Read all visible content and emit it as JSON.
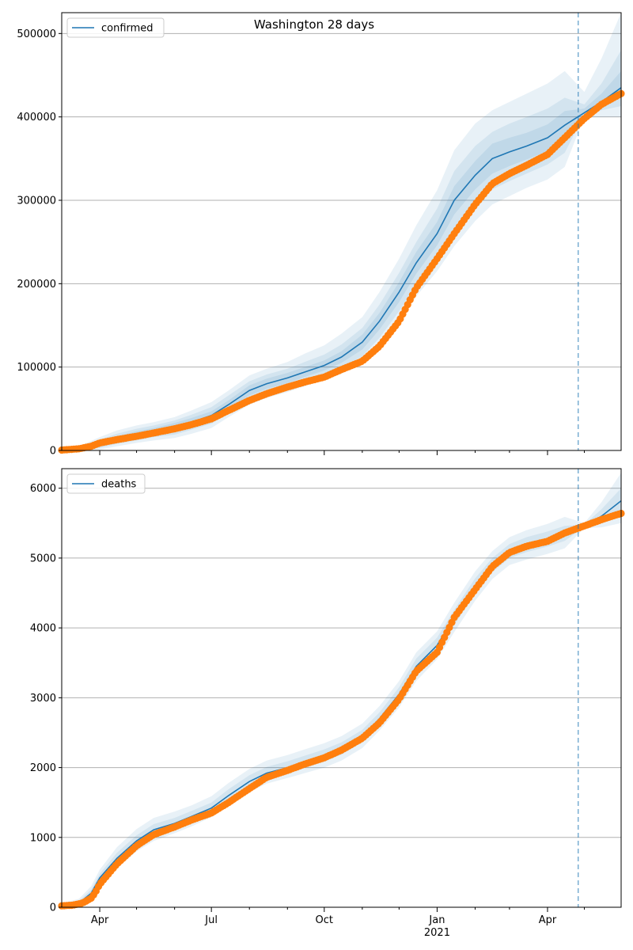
{
  "figure": {
    "title": "Washington 28 days",
    "colors": {
      "model_line": "#1f77b4",
      "band": "#1f77b4",
      "observed": "#ff7f0e",
      "cutoff_line": "#1f77b4",
      "grid": "#b0b0b0"
    }
  },
  "chart_data": [
    {
      "type": "line",
      "legend": "confirmed",
      "legend_position": "top-left",
      "grid": true,
      "ylim": [
        0,
        525000
      ],
      "yticks": [
        0,
        100000,
        200000,
        300000,
        400000,
        500000
      ],
      "ytick_labels": [
        "0",
        "100000",
        "200000",
        "300000",
        "400000",
        "500000"
      ],
      "xlim": [
        "2020-03-01",
        "2021-05-31"
      ],
      "xticks_major": [
        "2020-04-01",
        "2020-07-01",
        "2020-10-01",
        "2021-01-01",
        "2021-04-01"
      ],
      "xticks_minor": [
        "2020-05-01",
        "2020-06-01",
        "2020-08-01",
        "2020-09-01",
        "2020-11-01",
        "2020-12-01",
        "2021-02-01",
        "2021-03-01",
        "2021-05-01"
      ],
      "cutoff_date": "2021-04-26",
      "model": {
        "dates": [
          "2020-03-01",
          "2020-03-15",
          "2020-04-01",
          "2020-04-15",
          "2020-05-01",
          "2020-05-15",
          "2020-06-01",
          "2020-06-15",
          "2020-07-01",
          "2020-07-15",
          "2020-08-01",
          "2020-08-15",
          "2020-09-01",
          "2020-09-15",
          "2020-10-01",
          "2020-10-15",
          "2020-11-01",
          "2020-11-15",
          "2020-12-01",
          "2020-12-15",
          "2021-01-01",
          "2021-01-15",
          "2021-02-01",
          "2021-02-15",
          "2021-03-01",
          "2021-03-15",
          "2021-04-01",
          "2021-04-15",
          "2021-05-01",
          "2021-05-15",
          "2021-05-31"
        ],
        "values": [
          1000,
          2000,
          8000,
          14000,
          19000,
          23000,
          28000,
          34000,
          42000,
          55000,
          72000,
          80000,
          87000,
          94000,
          102000,
          112000,
          130000,
          155000,
          190000,
          225000,
          260000,
          300000,
          330000,
          350000,
          358000,
          365000,
          375000,
          390000,
          405000,
          418000,
          435000
        ],
        "bands": [
          {
            "lower": [
              0,
              0,
              1000,
              5000,
              9000,
              12000,
              15000,
              20000,
              27000,
              40000,
              55000,
              63000,
              70000,
              77000,
              85000,
              92000,
              105000,
              125000,
              155000,
              185000,
              215000,
              245000,
              275000,
              295000,
              305000,
              315000,
              325000,
              340000,
              400000,
              400000,
              400000
            ],
            "upper": [
              3000,
              5000,
              16000,
              24000,
              30000,
              34000,
              40000,
              48000,
              58000,
              72000,
              90000,
              98000,
              106000,
              116000,
              126000,
              140000,
              160000,
              190000,
              230000,
              270000,
              312000,
              360000,
              392000,
              408000,
              418000,
              428000,
              440000,
              455000,
              430000,
              470000,
              525000
            ]
          },
          {
            "lower": [
              0,
              0,
              3000,
              8000,
              12000,
              16000,
              19000,
              25000,
              32000,
              45000,
              61000,
              69000,
              76000,
              83000,
              91000,
              99000,
              113000,
              135000,
              167000,
              200000,
              232000,
              265000,
              295000,
              313000,
              323000,
              332000,
              343000,
              357000,
              403000,
              408000,
              413000
            ],
            "upper": [
              2000,
              4000,
              13000,
              20000,
              26000,
              30000,
              36000,
              43000,
              52000,
              66000,
              83000,
              91000,
              98000,
              106000,
              115000,
              127000,
              147000,
              175000,
              213000,
              250000,
              290000,
              335000,
              365000,
              382000,
              392000,
              400000,
              410000,
              423000,
              415000,
              440000,
              480000
            ]
          },
          {
            "lower": [
              0,
              1000,
              5000,
              11000,
              15000,
              19000,
              23000,
              29000,
              37000,
              50000,
              66000,
              74000,
              81000,
              88000,
              96000,
              105000,
              121000,
              145000,
              178000,
              212000,
              246000,
              283000,
              313000,
              332000,
              341000,
              349000,
              359000,
              373000,
              405000,
              413000,
              424000
            ],
            "upper": [
              1500,
              3000,
              11000,
              17000,
              23000,
              27000,
              33000,
              39000,
              47000,
              60000,
              78000,
              86000,
              93000,
              100000,
              108000,
              119000,
              139000,
              165000,
              202000,
              238000,
              274000,
              317000,
              347000,
              368000,
              375000,
              381000,
              391000,
              407000,
              410000,
              428000,
              455000
            ]
          }
        ]
      },
      "observed": {
        "dates": [
          "2020-03-01",
          "2020-03-15",
          "2020-03-25",
          "2020-04-01",
          "2020-04-15",
          "2020-05-01",
          "2020-05-15",
          "2020-06-01",
          "2020-06-15",
          "2020-07-01",
          "2020-07-15",
          "2020-08-01",
          "2020-08-15",
          "2020-09-01",
          "2020-09-15",
          "2020-10-01",
          "2020-10-15",
          "2020-11-01",
          "2020-11-15",
          "2020-12-01",
          "2020-12-15",
          "2021-01-01",
          "2021-01-15",
          "2021-02-01",
          "2021-02-15",
          "2021-03-01",
          "2021-03-15",
          "2021-04-01",
          "2021-04-15",
          "2021-05-01",
          "2021-05-15",
          "2021-05-31"
        ],
        "values": [
          500,
          2000,
          5000,
          9000,
          13000,
          17000,
          21000,
          26000,
          31000,
          38000,
          48000,
          60000,
          68000,
          76000,
          82000,
          88000,
          97000,
          107000,
          125000,
          155000,
          195000,
          230000,
          260000,
          295000,
          320000,
          332000,
          342000,
          355000,
          375000,
          398000,
          415000,
          428000
        ]
      }
    },
    {
      "type": "line",
      "legend": "deaths",
      "legend_position": "top-left",
      "grid": true,
      "ylim": [
        0,
        6280
      ],
      "yticks": [
        0,
        1000,
        2000,
        3000,
        4000,
        5000,
        6000
      ],
      "ytick_labels": [
        "0",
        "1000",
        "2000",
        "3000",
        "4000",
        "5000",
        "6000"
      ],
      "xlim": [
        "2020-03-01",
        "2021-05-31"
      ],
      "xticks_major": [
        "2020-04-01",
        "2020-07-01",
        "2020-10-01",
        "2021-01-01",
        "2021-04-01"
      ],
      "xticks_minor": [
        "2020-05-01",
        "2020-06-01",
        "2020-08-01",
        "2020-09-01",
        "2020-11-01",
        "2020-12-01",
        "2021-02-01",
        "2021-03-01",
        "2021-05-01"
      ],
      "xtick_labels": [
        "Apr",
        "Jul",
        "Oct",
        "Jan",
        "Apr"
      ],
      "year_label": "2021",
      "cutoff_date": "2021-04-26",
      "model": {
        "dates": [
          "2020-03-01",
          "2020-03-15",
          "2020-03-25",
          "2020-04-01",
          "2020-04-15",
          "2020-05-01",
          "2020-05-15",
          "2020-06-01",
          "2020-06-15",
          "2020-07-01",
          "2020-07-15",
          "2020-08-01",
          "2020-08-15",
          "2020-09-01",
          "2020-09-15",
          "2020-10-01",
          "2020-10-15",
          "2020-11-01",
          "2020-11-15",
          "2020-12-01",
          "2020-12-15",
          "2021-01-01",
          "2021-01-15",
          "2021-02-01",
          "2021-02-15",
          "2021-03-01",
          "2021-03-15",
          "2021-04-01",
          "2021-04-15",
          "2021-05-01",
          "2021-05-15",
          "2021-05-31"
        ],
        "values": [
          20,
          60,
          200,
          420,
          700,
          950,
          1110,
          1200,
          1300,
          1420,
          1600,
          1800,
          1920,
          2000,
          2080,
          2170,
          2270,
          2450,
          2700,
          3050,
          3450,
          3750,
          4150,
          4600,
          4900,
          5100,
          5190,
          5270,
          5350,
          5460,
          5600,
          5820
        ],
        "bands": [
          {
            "lower": [
              0,
              20,
              120,
              320,
              560,
              800,
              950,
              1060,
              1160,
              1290,
              1450,
              1650,
              1770,
              1850,
              1920,
              2000,
              2100,
              2280,
              2530,
              2860,
              3240,
              3550,
              3940,
              4390,
              4700,
              4900,
              4980,
              5060,
              5140,
              5430,
              5440,
              5500
            ],
            "upper": [
              60,
              120,
              300,
              540,
              860,
              1120,
              1280,
              1370,
              1460,
              1590,
              1780,
              1980,
              2100,
              2180,
              2260,
              2350,
              2450,
              2630,
              2880,
              3240,
              3650,
              3950,
              4360,
              4810,
              5100,
              5300,
              5400,
              5490,
              5590,
              5500,
              5800,
              6220
            ]
          },
          {
            "lower": [
              10,
              40,
              160,
              370,
              630,
              880,
              1030,
              1130,
              1230,
              1350,
              1525,
              1725,
              1845,
              1925,
              2000,
              2085,
              2185,
              2365,
              2615,
              2955,
              3345,
              3650,
              4045,
              4495,
              4800,
              5000,
              5085,
              5165,
              5245,
              5445,
              5520,
              5660
            ],
            "upper": [
              40,
              90,
              250,
              480,
              780,
              1030,
              1190,
              1280,
              1380,
              1500,
              1690,
              1890,
              2010,
              2090,
              2170,
              2260,
              2360,
              2540,
              2790,
              3150,
              3560,
              3860,
              4260,
              4710,
              5000,
              5200,
              5300,
              5380,
              5460,
              5480,
              5700,
              6000
            ]
          }
        ]
      },
      "observed": {
        "dates": [
          "2020-03-01",
          "2020-03-10",
          "2020-03-18",
          "2020-03-25",
          "2020-03-28",
          "2020-04-01",
          "2020-04-15",
          "2020-05-01",
          "2020-05-15",
          "2020-06-01",
          "2020-06-15",
          "2020-07-01",
          "2020-07-15",
          "2020-08-01",
          "2020-08-15",
          "2020-09-01",
          "2020-09-15",
          "2020-10-01",
          "2020-10-15",
          "2020-11-01",
          "2020-11-15",
          "2020-12-01",
          "2020-12-15",
          "2021-01-01",
          "2021-01-15",
          "2021-02-01",
          "2021-02-15",
          "2021-03-01",
          "2021-03-15",
          "2021-04-01",
          "2021-04-15",
          "2021-05-01",
          "2021-05-15",
          "2021-05-31"
        ],
        "values": [
          20,
          30,
          60,
          130,
          200,
          330,
          620,
          880,
          1040,
          1150,
          1250,
          1350,
          1500,
          1700,
          1860,
          1960,
          2050,
          2140,
          2250,
          2420,
          2640,
          2980,
          3380,
          3650,
          4150,
          4550,
          4880,
          5080,
          5170,
          5240,
          5360,
          5460,
          5550,
          5640
        ]
      }
    }
  ]
}
